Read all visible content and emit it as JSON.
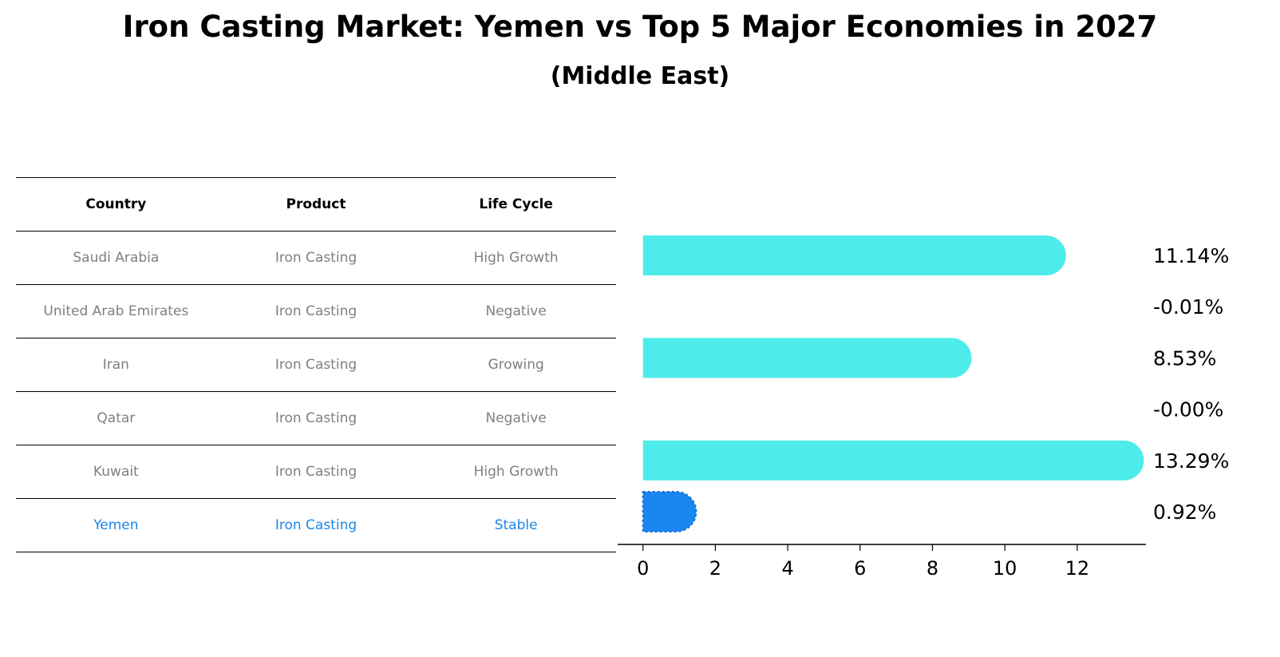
{
  "title": "Iron Casting Market: Yemen vs Top 5 Major Economies in 2027",
  "subtitle": "(Middle East)",
  "table": {
    "headers": [
      "Country",
      "Product",
      "Life Cycle"
    ],
    "rows": [
      [
        "Saudi Arabia",
        "Iron Casting",
        "High Growth"
      ],
      [
        "United Arab Emirates",
        "Iron Casting",
        "Negative"
      ],
      [
        "Iran",
        "Iron Casting",
        "Growing"
      ],
      [
        "Qatar",
        "Iron Casting",
        "Negative"
      ],
      [
        "Kuwait",
        "Iron Casting",
        "High Growth"
      ],
      [
        "Yemen",
        "Iron Casting",
        "Stable"
      ]
    ]
  },
  "chart_data": {
    "type": "bar",
    "orientation": "horizontal",
    "categories": [
      "Saudi Arabia",
      "United Arab Emirates",
      "Iran",
      "Qatar",
      "Kuwait",
      "Yemen"
    ],
    "values": [
      11.14,
      -0.01,
      8.53,
      -0.0,
      13.29,
      0.92
    ],
    "value_labels": [
      "11.14%",
      "-0.01%",
      "8.53%",
      "-0.00%",
      "13.29%",
      "0.92%"
    ],
    "highlight": "Yemen",
    "xlim": [
      -0.7,
      13.9
    ],
    "xticks": [
      0,
      2,
      4,
      6,
      8,
      10,
      12
    ],
    "grid": false,
    "colors": {
      "bar": "#4deceb",
      "highlight": "#1a86f0",
      "text_muted": "#7f7f7f",
      "text_highlight": "#1a86e6"
    }
  }
}
